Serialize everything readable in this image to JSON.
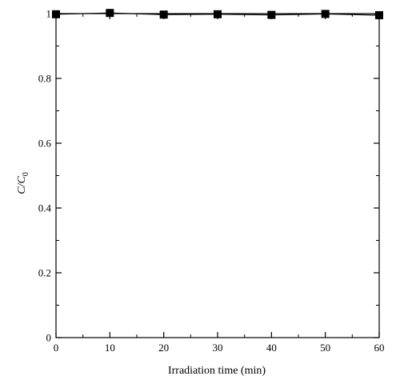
{
  "chart_data": {
    "type": "line",
    "xlabel": "Irradiation time (min)",
    "ylabel": {
      "main": "C/C",
      "subscript": "0"
    },
    "x": [
      0,
      10,
      20,
      30,
      40,
      50,
      60
    ],
    "series": [
      {
        "values": [
          0.998,
          1.002,
          0.997,
          0.998,
          0.996,
          0.999,
          0.995
        ]
      }
    ],
    "xlim": [
      0,
      60
    ],
    "ylim": [
      0,
      1.0
    ],
    "xticks": [
      "0",
      "10",
      "20",
      "30",
      "40",
      "50",
      "60"
    ],
    "yticks": [
      "0",
      "0.2",
      "0.4",
      "0.6",
      "0.8",
      "1"
    ],
    "xtick_values": [
      0,
      10,
      20,
      30,
      40,
      50,
      60
    ],
    "ytick_values": [
      0,
      0.2,
      0.4,
      0.6,
      0.8,
      1.0
    ],
    "marker": "square",
    "grid": false,
    "legend": "none",
    "colors": {
      "line": "#000000",
      "marker": "#000000",
      "axis": "#000000"
    }
  }
}
